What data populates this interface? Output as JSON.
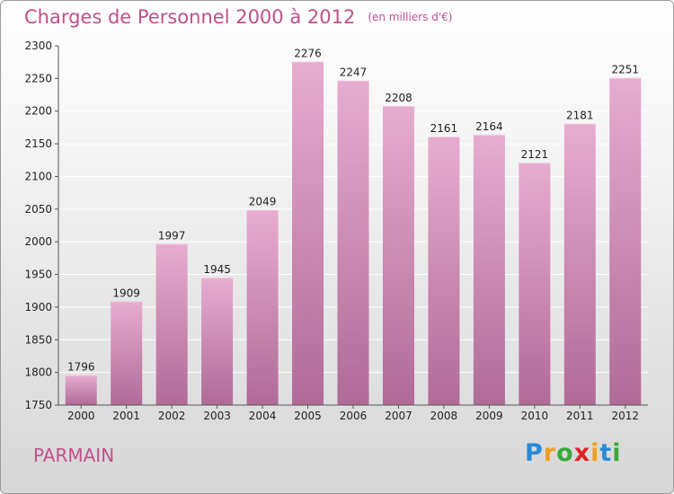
{
  "page": {
    "title": "Charges de Personnel 2000 à 2012",
    "subtitle": "(en milliers d'€)",
    "city": "PARMAIN",
    "logo": {
      "p": "P",
      "r": "r",
      "o": "o",
      "x": "x",
      "i": "i",
      "t": "t",
      "i2": "i"
    }
  },
  "chart_data": {
    "type": "bar",
    "title": "Charges de Personnel 2000 à 2012",
    "subtitle": "(en milliers d'€)",
    "xlabel": "",
    "ylabel": "",
    "categories": [
      "2000",
      "2001",
      "2002",
      "2003",
      "2004",
      "2005",
      "2006",
      "2007",
      "2008",
      "2009",
      "2010",
      "2011",
      "2012"
    ],
    "values": [
      1796,
      1909,
      1997,
      1945,
      2049,
      2276,
      2247,
      2208,
      2161,
      2164,
      2121,
      2181,
      2251
    ],
    "ylim": [
      1750,
      2300
    ],
    "yticks": [
      1750,
      1800,
      1850,
      1900,
      1950,
      2000,
      2050,
      2100,
      2150,
      2200,
      2250,
      2300
    ],
    "grid": true,
    "legend": "none",
    "bar_color_top": "#e8acd0",
    "bar_color_bottom": "#b06a98",
    "grid_color": "#ffffff",
    "text_color": "#222222"
  }
}
